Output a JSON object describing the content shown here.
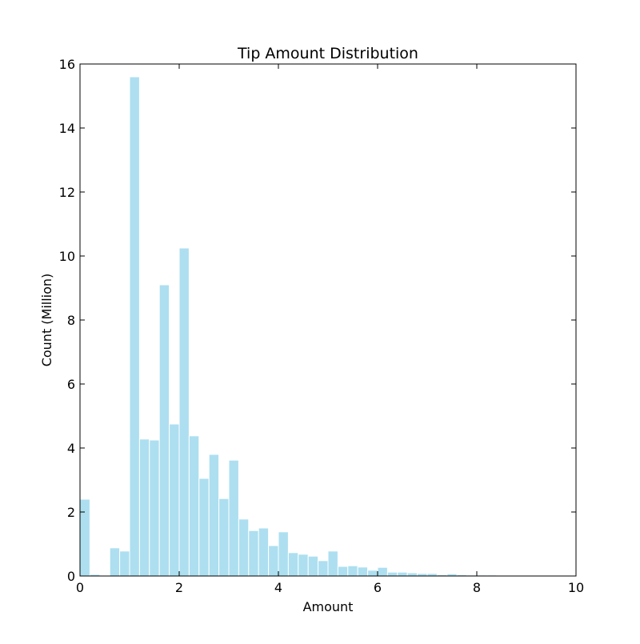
{
  "chart_data": {
    "type": "bar",
    "title": "Tip Amount Distribution",
    "xlabel": "Amount",
    "ylabel": "Count (Million)",
    "xlim": [
      0,
      10
    ],
    "ylim": [
      0,
      16
    ],
    "x_ticks": [
      "0",
      "2",
      "4",
      "6",
      "8",
      "10"
    ],
    "y_ticks": [
      "0",
      "2",
      "4",
      "6",
      "8",
      "10",
      "12",
      "14",
      "16"
    ],
    "bin_width": 0.2,
    "bin_starts": [
      0.0,
      0.2,
      0.4,
      0.6,
      0.8,
      1.0,
      1.2,
      1.4,
      1.6,
      1.8,
      2.0,
      2.2,
      2.4,
      2.6,
      2.8,
      3.0,
      3.2,
      3.4,
      3.6,
      3.8,
      4.0,
      4.2,
      4.4,
      4.6,
      4.8,
      5.0,
      5.2,
      5.4,
      5.6,
      5.8,
      6.0,
      6.2,
      6.4,
      6.6,
      6.8,
      7.0,
      7.2,
      7.4,
      7.6,
      7.8,
      8.0,
      8.2,
      8.4,
      8.6,
      8.8,
      9.0,
      9.2,
      9.4,
      9.6,
      9.8
    ],
    "values": [
      2.4,
      0.05,
      0.0,
      0.88,
      0.78,
      15.6,
      4.28,
      4.25,
      9.1,
      4.75,
      10.25,
      4.38,
      3.05,
      3.8,
      2.42,
      3.62,
      1.78,
      1.42,
      1.5,
      0.95,
      1.38,
      0.73,
      0.68,
      0.62,
      0.48,
      0.78,
      0.3,
      0.32,
      0.28,
      0.18,
      0.27,
      0.12,
      0.12,
      0.1,
      0.08,
      0.08,
      0.04,
      0.07,
      0.04,
      0.03,
      0.03,
      0.03,
      0.02,
      0.02,
      0.01,
      0.01,
      0.01,
      0.01,
      0.0,
      0.0
    ],
    "bar_color": "#ADDFF0",
    "bar_edge_color": "#ffffff",
    "grid": false
  }
}
